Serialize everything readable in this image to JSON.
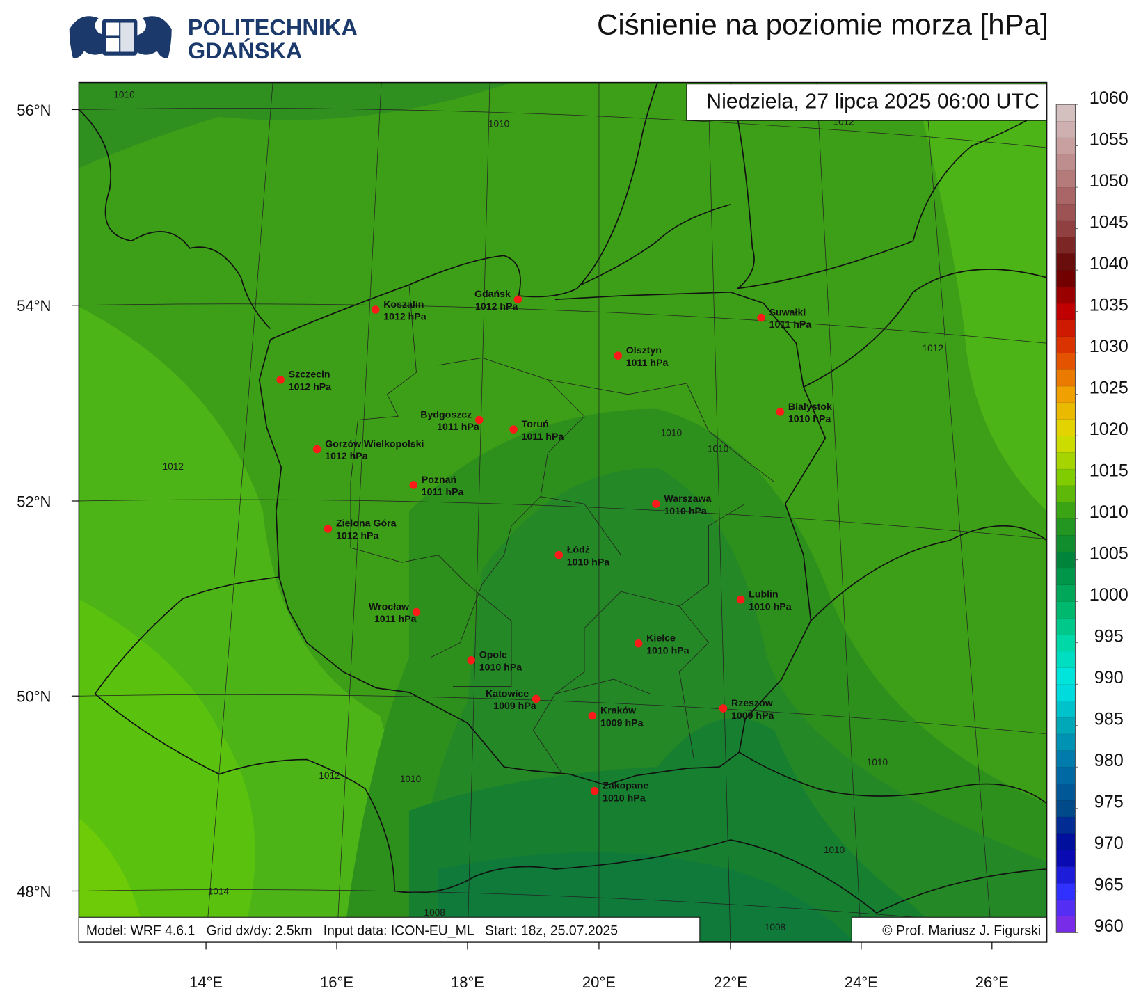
{
  "header": {
    "logo_line1": "POLITECHNIKA",
    "logo_line2": "GDAŃSKA",
    "title": "Ciśnienie na poziomie morza [hPa]"
  },
  "map": {
    "date": "Niedziela, 27 lipca 2025 06:00 UTC",
    "cities": [
      {
        "name": "Koszalin",
        "value": "1012 hPa"
      },
      {
        "name": "Gdańsk",
        "value": "1012 hPa"
      },
      {
        "name": "Suwałki",
        "value": "1011 hPa"
      },
      {
        "name": "Olsztyn",
        "value": "1011 hPa"
      },
      {
        "name": "Szczecin",
        "value": "1012 hPa"
      },
      {
        "name": "Białystok",
        "value": "1010 hPa"
      },
      {
        "name": "Bydgoszcz",
        "value": "1011 hPa"
      },
      {
        "name": "Toruń",
        "value": "1011 hPa"
      },
      {
        "name": "Gorzów Wielkopolski",
        "value": "1012 hPa"
      },
      {
        "name": "Poznań",
        "value": "1011 hPa"
      },
      {
        "name": "Warszawa",
        "value": "1010 hPa"
      },
      {
        "name": "Zielona Góra",
        "value": "1012 hPa"
      },
      {
        "name": "Łódź",
        "value": "1010 hPa"
      },
      {
        "name": "Lublin",
        "value": "1010 hPa"
      },
      {
        "name": "Wrocław",
        "value": "1011 hPa"
      },
      {
        "name": "Kielce",
        "value": "1010 hPa"
      },
      {
        "name": "Opole",
        "value": "1010 hPa"
      },
      {
        "name": "Katowice",
        "value": "1009 hPa"
      },
      {
        "name": "Kraków",
        "value": "1009 hPa"
      },
      {
        "name": "Rzeszów",
        "value": "1009 hPa"
      },
      {
        "name": "Zakopane",
        "value": "1010 hPa"
      }
    ],
    "contour_labels": [
      "1010",
      "1010",
      "1012",
      "1012",
      "1012",
      "1010",
      "1010",
      "1012",
      "1010",
      "1010",
      "1010",
      "1014",
      "1008",
      "1008"
    ],
    "lat_labels": [
      "56°N",
      "54°N",
      "52°N",
      "50°N",
      "48°N"
    ],
    "lon_labels": [
      "14°E",
      "16°E",
      "18°E",
      "20°E",
      "22°E",
      "24°E",
      "26°E"
    ],
    "footer": "Model: WRF 4.6.1   Grid dx/dy: 2.5km   Input data: ICON-EU_ML   Start: 18z, 25.07.2025",
    "copyright": "© Prof. Mariusz J. Figurski"
  },
  "colorbar": {
    "ticks": [
      1060,
      1055,
      1050,
      1045,
      1040,
      1035,
      1030,
      1025,
      1020,
      1015,
      1010,
      1005,
      1000,
      995,
      990,
      985,
      980,
      975,
      970,
      965,
      960
    ]
  }
}
